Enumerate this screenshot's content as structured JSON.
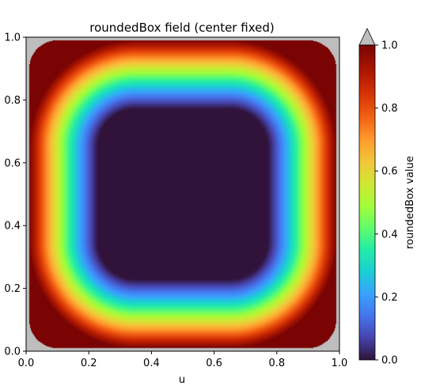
{
  "chart_data": {
    "type": "heatmap",
    "title": "roundedBox field (center fixed)",
    "xlabel": "u",
    "ylabel": "",
    "xlim": [
      0.0,
      1.0
    ],
    "ylim": [
      0.0,
      1.0
    ],
    "x_ticks": [
      "0.0",
      "0.2",
      "0.4",
      "0.6",
      "0.8",
      "1.0"
    ],
    "y_ticks": [
      "0.0",
      "0.2",
      "0.4",
      "0.6",
      "0.8",
      "1.0"
    ],
    "colorbar": {
      "label": "roundedBox value",
      "range": [
        0.0,
        1.0
      ],
      "ticks": [
        "0.0",
        "0.2",
        "0.4",
        "0.6",
        "0.8",
        "1.0"
      ],
      "colormap": "turbo",
      "extend": "max",
      "extend_color": "#bdbdbd"
    },
    "field": {
      "description_shape": "rounded box",
      "inner_region": [
        [
          0.23,
          0.77
        ],
        [
          0.23,
          0.77
        ]
      ],
      "outer_edge": [
        [
          0.01,
          0.99
        ],
        [
          0.01,
          0.99
        ]
      ],
      "corner_rounding": 0.09
    },
    "background_color": "#bdbdbd",
    "grid": false
  }
}
